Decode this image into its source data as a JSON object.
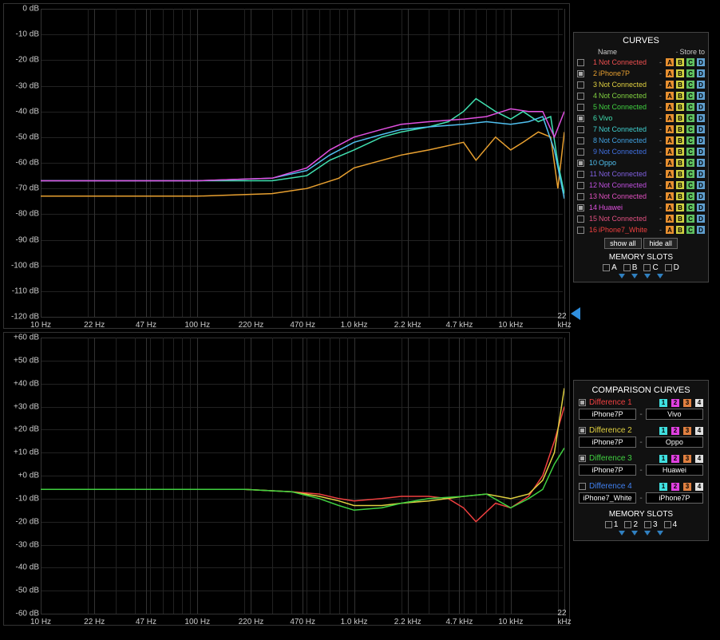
{
  "top_chart": {
    "type": "line",
    "background_color": "#000000",
    "grid_color": "#222222",
    "grid_major_color": "#333333",
    "ylim": [
      -120,
      0
    ],
    "ytick_step": 10,
    "ylabels": [
      "0 dB",
      "-10 dB",
      "-20 dB",
      "-30 dB",
      "-40 dB",
      "-50 dB",
      "-60 dB",
      "-70 dB",
      "-80 dB",
      "-90 dB",
      "-100 dB",
      "-110 dB",
      "-120 dB"
    ],
    "xscale": "log",
    "xlim": [
      10,
      22000
    ],
    "xticks_label": [
      "10 Hz",
      "22 Hz",
      "47 Hz",
      "100 Hz",
      "220 Hz",
      "470 Hz",
      "1.0 kHz",
      "2.2 kHz",
      "4.7 kHz",
      "10 kHz",
      "22 kHz"
    ],
    "xticks_hz": [
      10,
      22,
      47,
      100,
      220,
      470,
      1000,
      2200,
      4700,
      10000,
      22000
    ],
    "series": [
      {
        "name": "iPhone7P",
        "color": "#e8a030",
        "hz": [
          10,
          100,
          300,
          500,
          800,
          1000,
          2000,
          3000,
          5000,
          6000,
          8000,
          10000,
          12000,
          15000,
          18000,
          20000,
          22000
        ],
        "db": [
          -73,
          -73,
          -72,
          -70,
          -66,
          -62,
          -57,
          -55,
          -52,
          -59,
          -50,
          -55,
          -52,
          -48,
          -50,
          -70,
          -48
        ]
      },
      {
        "name": "Vivo",
        "color": "#40e0b0",
        "hz": [
          10,
          100,
          300,
          500,
          700,
          1000,
          1500,
          2000,
          3000,
          4000,
          5000,
          6000,
          8000,
          10000,
          12000,
          15000,
          18000,
          20000,
          22000
        ],
        "db": [
          -67,
          -67,
          -67,
          -65,
          -59,
          -55,
          -50,
          -48,
          -46,
          -44,
          -40,
          -35,
          -40,
          -43,
          -40,
          -44,
          -42,
          -60,
          -72
        ]
      },
      {
        "name": "Oppo",
        "color": "#50c0f0",
        "hz": [
          10,
          100,
          300,
          500,
          700,
          1000,
          1500,
          2000,
          3000,
          5000,
          7000,
          10000,
          13000,
          16000,
          19000,
          22000
        ],
        "db": [
          -67,
          -67,
          -66,
          -63,
          -57,
          -52,
          -49,
          -47,
          -46,
          -45,
          -44,
          -45,
          -44,
          -42,
          -55,
          -74
        ]
      },
      {
        "name": "Huawei",
        "color": "#e050e0",
        "hz": [
          10,
          100,
          300,
          500,
          700,
          1000,
          1500,
          2000,
          3000,
          5000,
          7000,
          10000,
          13000,
          16000,
          19000,
          22000
        ],
        "db": [
          -67,
          -67,
          -66,
          -62,
          -55,
          -50,
          -47,
          -45,
          -44,
          -43,
          -42,
          -39,
          -40,
          -40,
          -50,
          -40
        ]
      }
    ],
    "cursor_y_db": -120
  },
  "bot_chart": {
    "type": "line",
    "background_color": "#000000",
    "grid_color": "#222222",
    "ylim": [
      -60,
      60
    ],
    "ytick_step": 10,
    "ylabels": [
      "+60 dB",
      "+50 dB",
      "+40 dB",
      "+30 dB",
      "+20 dB",
      "+10 dB",
      "+0 dB",
      "-10 dB",
      "-20 dB",
      "-30 dB",
      "-40 dB",
      "-50 dB",
      "-60 dB"
    ],
    "xscale": "log",
    "xlim": [
      10,
      22000
    ],
    "xticks_label": [
      "10 Hz",
      "22 Hz",
      "47 Hz",
      "100 Hz",
      "220 Hz",
      "470 Hz",
      "1.0 kHz",
      "2.2 kHz",
      "4.7 kHz",
      "10 kHz",
      "22 kHz"
    ],
    "xticks_hz": [
      10,
      22,
      47,
      100,
      220,
      470,
      1000,
      2200,
      4700,
      10000,
      22000
    ],
    "series": [
      {
        "name": "Difference 1",
        "color": "#f04040",
        "hz": [
          10,
          200,
          400,
          600,
          800,
          1000,
          1500,
          2000,
          3000,
          4000,
          5000,
          6000,
          8000,
          10000,
          13000,
          16000,
          19000,
          22000
        ],
        "db": [
          -6,
          -6,
          -7,
          -8,
          -10,
          -11,
          -10,
          -9,
          -9,
          -10,
          -14,
          -20,
          -12,
          -14,
          -9,
          0,
          15,
          30
        ]
      },
      {
        "name": "Difference 2",
        "color": "#e0d040",
        "hz": [
          10,
          200,
          400,
          600,
          800,
          1000,
          1500,
          2000,
          3000,
          5000,
          7000,
          10000,
          13000,
          16000,
          19000,
          22000
        ],
        "db": [
          -6,
          -6,
          -7,
          -9,
          -11,
          -13,
          -13,
          -12,
          -11,
          -9,
          -8,
          -10,
          -8,
          -2,
          10,
          38
        ]
      },
      {
        "name": "Difference 3",
        "color": "#40d040",
        "hz": [
          10,
          200,
          400,
          600,
          800,
          1000,
          1500,
          2000,
          3000,
          5000,
          7000,
          10000,
          13000,
          16000,
          19000,
          22000
        ],
        "db": [
          -6,
          -6,
          -7,
          -10,
          -13,
          -15,
          -14,
          -12,
          -10,
          -9,
          -8,
          -14,
          -10,
          -6,
          5,
          12
        ]
      }
    ]
  },
  "curves_panel": {
    "title": "CURVES",
    "hdr_name": "Name",
    "hdr_store": "Store to",
    "items": [
      {
        "n": "1",
        "name": "Not Connected",
        "color": "#f05050",
        "on": false
      },
      {
        "n": "2",
        "name": "iPhone7P",
        "color": "#e8a030",
        "on": true
      },
      {
        "n": "3",
        "name": "Not Connected",
        "color": "#e0d040",
        "on": false
      },
      {
        "n": "4",
        "name": "Not Connected",
        "color": "#80d040",
        "on": false
      },
      {
        "n": "5",
        "name": "Not Connected",
        "color": "#40d040",
        "on": false
      },
      {
        "n": "6",
        "name": "Vivo",
        "color": "#40e0b0",
        "on": true
      },
      {
        "n": "7",
        "name": "Not Connected",
        "color": "#40d0d0",
        "on": false
      },
      {
        "n": "8",
        "name": "Not Connected",
        "color": "#40a0e0",
        "on": false
      },
      {
        "n": "9",
        "name": "Not Connected",
        "color": "#4070e0",
        "on": false
      },
      {
        "n": "10",
        "name": "Oppo",
        "color": "#50c0f0",
        "on": true
      },
      {
        "n": "11",
        "name": "Not Connected",
        "color": "#8060e0",
        "on": false
      },
      {
        "n": "12",
        "name": "Not Connected",
        "color": "#c050e0",
        "on": false
      },
      {
        "n": "13",
        "name": "Not Connected",
        "color": "#e050c0",
        "on": false
      },
      {
        "n": "14",
        "name": "Huawei",
        "color": "#e050e0",
        "on": true
      },
      {
        "n": "15",
        "name": "Not Connected",
        "color": "#e05080",
        "on": false
      },
      {
        "n": "16",
        "name": "iPhone7_White",
        "color": "#f04040",
        "on": false
      }
    ],
    "show_all": "show all",
    "hide_all": "hide all",
    "memslots_title": "MEMORY SLOTS",
    "slot_labels": [
      "A",
      "B",
      "C",
      "D"
    ]
  },
  "comp_panel": {
    "title": "COMPARISON CURVES",
    "rows": [
      {
        "label": "Difference 1",
        "color": "#f04040",
        "on": true,
        "a": "iPhone7P",
        "b": "Vivo"
      },
      {
        "label": "Difference 2",
        "color": "#e0d040",
        "on": true,
        "a": "iPhone7P",
        "b": "Oppo"
      },
      {
        "label": "Difference 3",
        "color": "#40d040",
        "on": true,
        "a": "iPhone7P",
        "b": "Huawei"
      },
      {
        "label": "Difference 4",
        "color": "#4080f0",
        "on": false,
        "a": "iPhone7_White",
        "b": "iPhone7P"
      }
    ],
    "memslots_title": "MEMORY SLOTS",
    "slot_labels": [
      "1",
      "2",
      "3",
      "4"
    ]
  }
}
